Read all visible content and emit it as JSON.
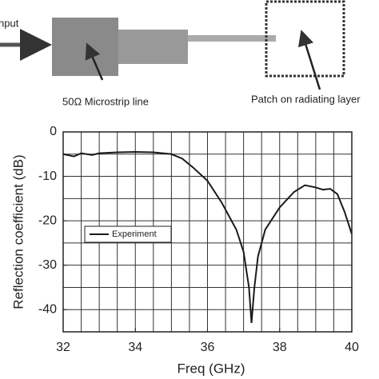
{
  "diagram": {
    "input_label": "nput",
    "line_label": "50Ω Microstrip line",
    "patch_label": "Patch on radiating layer"
  },
  "chart_data": {
    "type": "line",
    "xlabel": "Freq (GHz)",
    "ylabel": "Reflection coefficient (dB)",
    "x": [
      32,
      32.3,
      32.5,
      32.8,
      33,
      33.5,
      34,
      34.5,
      35,
      35.3,
      35.6,
      36,
      36.4,
      36.8,
      37.0,
      37.15,
      37.22,
      37.3,
      37.4,
      37.6,
      38,
      38.4,
      38.7,
      39,
      39.2,
      39.4,
      39.6,
      39.8,
      40
    ],
    "series": [
      {
        "name": "Experiment",
        "color": "#1a1a1a",
        "values": [
          -5,
          -5.5,
          -4.8,
          -5.2,
          -4.8,
          -4.6,
          -4.5,
          -4.6,
          -5,
          -6,
          -8,
          -11,
          -16,
          -22,
          -27,
          -35,
          -43,
          -35,
          -28,
          -22,
          -17,
          -13.5,
          -12,
          -12.5,
          -13,
          -12.8,
          -14,
          -18,
          -23
        ]
      }
    ],
    "xlim": [
      32,
      40
    ],
    "xticks": [
      32,
      34,
      36,
      38,
      40
    ],
    "ylim": [
      -45,
      0
    ],
    "yticks": [
      0,
      -10,
      -20,
      -30,
      -40
    ],
    "x_grid_lines": [
      32.5,
      33,
      33.5,
      34,
      34.5,
      35,
      35.5,
      36,
      36.5,
      37,
      37.5,
      38,
      38.5,
      39,
      39.5
    ],
    "y_grid_lines": [
      -5,
      -10,
      -15,
      -20,
      -25,
      -30,
      -35,
      -40
    ],
    "grid": true,
    "legend": "center-left"
  }
}
